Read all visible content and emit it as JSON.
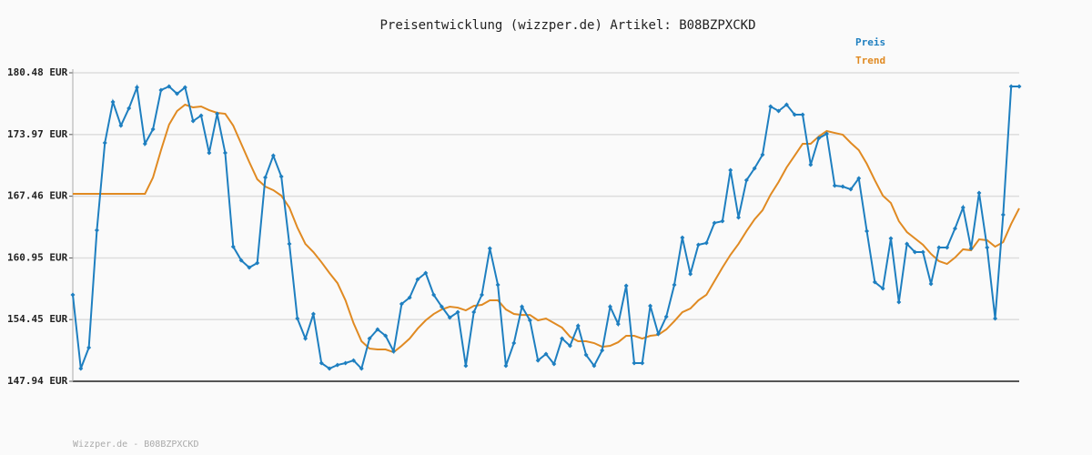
{
  "title": "Preisentwicklung (wizzper.de) Artikel: B08BZPXCKD",
  "footer": "Wizzper.de - B08BZPXCKD",
  "chart_data": {
    "type": "line",
    "ylim": [
      147.94,
      180.48
    ],
    "yticks": [
      {
        "value": 180.48,
        "label": "180.48 EUR"
      },
      {
        "value": 173.97,
        "label": "173.97 EUR"
      },
      {
        "value": 167.46,
        "label": "167.46 EUR"
      },
      {
        "value": 160.95,
        "label": "160.95 EUR"
      },
      {
        "value": 154.45,
        "label": "154.45 EUR"
      },
      {
        "value": 147.94,
        "label": "147.94 EUR"
      }
    ],
    "grid": true,
    "legend": "top-right",
    "series": [
      {
        "name": "Preis",
        "color": "#1e7fc0",
        "markers": true,
        "values": [
          157.06,
          149.28,
          151.49,
          163.87,
          173.09,
          177.41,
          174.91,
          176.74,
          178.94,
          172.99,
          174.53,
          178.66,
          179.04,
          178.27,
          178.94,
          175.39,
          175.97,
          172.03,
          176.16,
          172.03,
          162.14,
          160.7,
          159.94,
          160.42,
          169.44,
          171.74,
          169.54,
          162.43,
          154.56,
          152.45,
          155.04,
          149.86,
          149.28,
          149.66,
          149.86,
          150.14,
          149.28,
          152.45,
          153.41,
          152.74,
          151.1,
          156.1,
          156.77,
          158.69,
          159.36,
          157.06,
          155.81,
          154.66,
          155.23,
          149.57,
          155.23,
          157.06,
          161.95,
          158.11,
          149.57,
          151.97,
          155.81,
          154.37,
          150.14,
          150.82,
          149.76,
          152.45,
          151.68,
          153.79,
          150.72,
          149.57,
          151.2,
          155.81,
          153.98,
          158.02,
          149.86,
          149.86,
          155.9,
          152.93,
          154.75,
          158.11,
          163.1,
          159.26,
          162.34,
          162.53,
          164.64,
          164.83,
          170.21,
          165.22,
          169.15,
          170.4,
          171.84,
          176.93,
          176.45,
          177.12,
          176.06,
          176.06,
          170.78,
          173.57,
          174.05,
          168.58,
          168.48,
          168.19,
          169.34,
          163.78,
          158.4,
          157.73,
          163.01,
          156.29,
          162.43,
          161.57,
          161.57,
          158.21,
          162.05,
          162.05,
          164.06,
          166.27,
          161.95,
          167.81,
          162.05,
          154.56,
          165.5,
          179.04,
          179.04
        ]
      },
      {
        "name": "Trend",
        "color": "#e08a22",
        "markers": false,
        "values": [
          167.71,
          167.71,
          167.71,
          167.71,
          167.71,
          167.71,
          167.71,
          167.71,
          167.71,
          167.71,
          169.44,
          172.32,
          175.01,
          176.45,
          177.12,
          176.83,
          176.93,
          176.54,
          176.26,
          176.16,
          174.91,
          172.99,
          171.07,
          169.25,
          168.48,
          168.1,
          167.52,
          166.27,
          164.16,
          162.43,
          161.57,
          160.51,
          159.36,
          158.3,
          156.48,
          154.08,
          152.16,
          151.39,
          151.3,
          151.3,
          151.01,
          151.68,
          152.45,
          153.5,
          154.37,
          155.04,
          155.52,
          155.81,
          155.71,
          155.42,
          155.9,
          156.0,
          156.48,
          156.48,
          155.52,
          155.04,
          154.94,
          154.94,
          154.37,
          154.56,
          154.08,
          153.6,
          152.64,
          152.16,
          152.16,
          151.97,
          151.58,
          151.68,
          152.06,
          152.74,
          152.74,
          152.45,
          152.74,
          152.84,
          153.41,
          154.28,
          155.23,
          155.61,
          156.48,
          157.06,
          158.5,
          159.94,
          161.28,
          162.43,
          163.78,
          165.02,
          165.98,
          167.62,
          168.96,
          170.5,
          171.74,
          172.99,
          172.99,
          173.76,
          174.34,
          174.14,
          173.95,
          173.09,
          172.32,
          170.88,
          169.15,
          167.52,
          166.75,
          164.83,
          163.68,
          163.01,
          162.34,
          161.38,
          160.61,
          160.32,
          160.99,
          161.86,
          161.76,
          162.91,
          162.82,
          162.14,
          162.62,
          164.54,
          166.18
        ]
      }
    ]
  }
}
